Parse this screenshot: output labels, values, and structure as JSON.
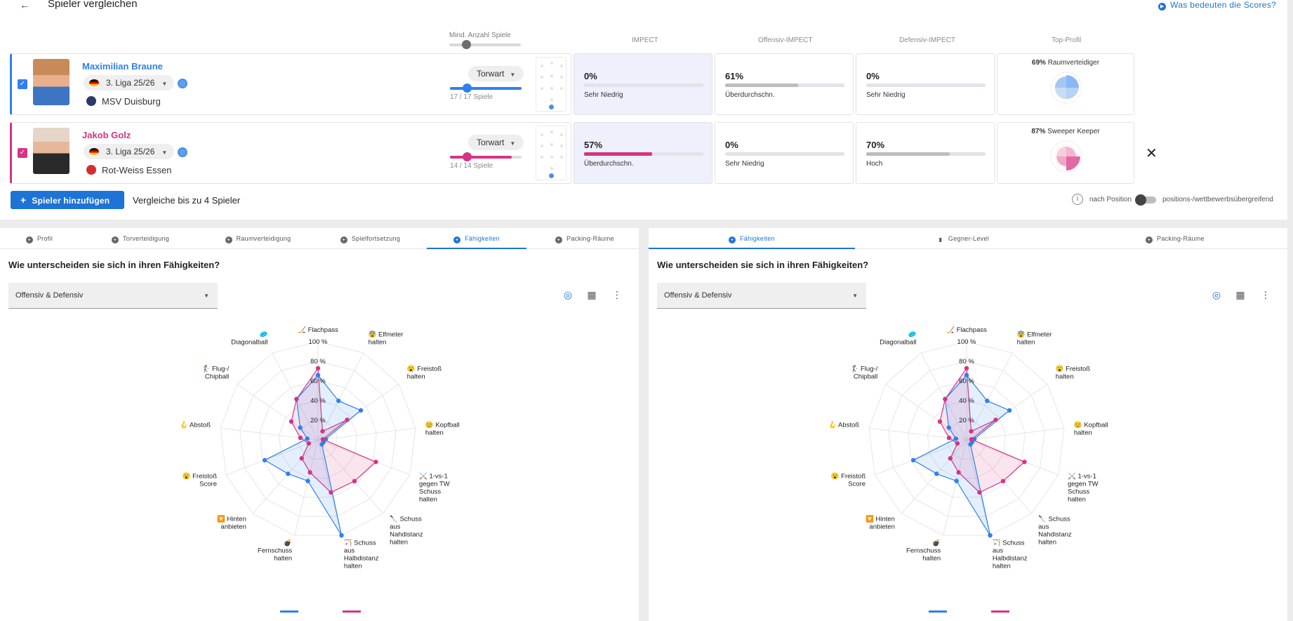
{
  "header": {
    "back_icon": "←",
    "title": "Spieler vergleichen",
    "scores_link": "Was bedeuten die Scores?"
  },
  "columns": {
    "min_games": "Mind. Anzahl Spiele",
    "impect": "IMPECT",
    "offensiv": "Offensiv-IMPECT",
    "defensiv": "Defensiv-IMPECT",
    "top_profil": "Top-Profil"
  },
  "players": [
    {
      "name": "Maximilian Braune",
      "color": "#2f80ed",
      "league": "3. Liga 25/26",
      "club": "MSV Duisburg",
      "position": "Torwart",
      "games": "17 / 17 Spiele",
      "games_fraction": 1.0,
      "impect": {
        "value": "0%",
        "level": "Sehr Niedrig",
        "fill": 0
      },
      "offensiv": {
        "value": "61%",
        "level": "Überdurchschn.",
        "fill": 0.61
      },
      "defensiv": {
        "value": "0%",
        "level": "Sehr Niedrig",
        "fill": 0
      },
      "top_profil": {
        "pct": "69%",
        "label": "Raumverteidiger"
      }
    },
    {
      "name": "Jakob Golz",
      "color": "#d63384",
      "league": "3. Liga 25/26",
      "club": "Rot-Weiss Essen",
      "position": "Torwart",
      "games": "14 / 14 Spiele",
      "games_fraction": 1.0,
      "impect": {
        "value": "57%",
        "level": "Überdurchschn.",
        "fill": 0.57
      },
      "offensiv": {
        "value": "0%",
        "level": "Sehr Niedrig",
        "fill": 0
      },
      "defensiv": {
        "value": "70%",
        "level": "Hoch",
        "fill": 0.7
      },
      "top_profil": {
        "pct": "87%",
        "label": "Sweeper Keeper"
      }
    }
  ],
  "actions": {
    "add_player": "Spieler hinzufügen",
    "add_icon": "+",
    "compare_note": "Vergleiche bis zu 4 Spieler",
    "close_icon": "✕",
    "info_icon": "i",
    "check_icon": "✓"
  },
  "toggle": {
    "left": "nach Position",
    "right": "positions-/wettbewerbsübergreifend"
  },
  "left_panel": {
    "tabs": [
      "Profil",
      "Torverteidigung",
      "Raumverteidigung",
      "Spielfortsetzung",
      "Fähigkeiten",
      "Packing-Räume"
    ],
    "active_tab": "Fähigkeiten",
    "question": "Wie unterscheiden sie sich in ihren Fähigkeiten?",
    "select": "Offensiv & Defensiv"
  },
  "right_panel": {
    "tabs": [
      "Fähigkeiten",
      "Gegner-Level",
      "Packing-Räume"
    ],
    "active_tab": "Fähigkeiten",
    "question": "Wie unterscheiden sie sich in ihren Fähigkeiten?",
    "select": "Offensiv & Defensiv"
  },
  "radar": {
    "rings": [
      "20 %",
      "40 %",
      "60 %",
      "80 %",
      "100 %"
    ],
    "axes": [
      "🏒 Flachpass",
      "😨 Elfmeter halten",
      "😮 Freistoß halten",
      "😊 Kopfball halten",
      "⚔️ 1-vs-1 gegen TW Schuss halten",
      "🔪 Schuss aus Nahdistanz halten",
      "🏹 Schuss aus Halbdistanz halten",
      "💣 Fernschuss halten",
      "🔽 Hinten anbieten",
      "😮 Freistoß Score",
      "🪝 Abstoß",
      "🏌️ Flug-/ Chipball",
      "🥏 Diagonalball"
    ],
    "series": [
      {
        "color": "#2f80ed",
        "values": [
          66,
          45,
          53,
          8,
          6,
          6,
          100,
          43,
          46,
          58,
          11,
          22,
          47
        ]
      },
      {
        "color": "#d63384",
        "values": [
          73,
          10,
          36,
          5,
          63,
          56,
          55,
          34,
          25,
          10,
          18,
          33,
          47
        ]
      }
    ]
  }
}
